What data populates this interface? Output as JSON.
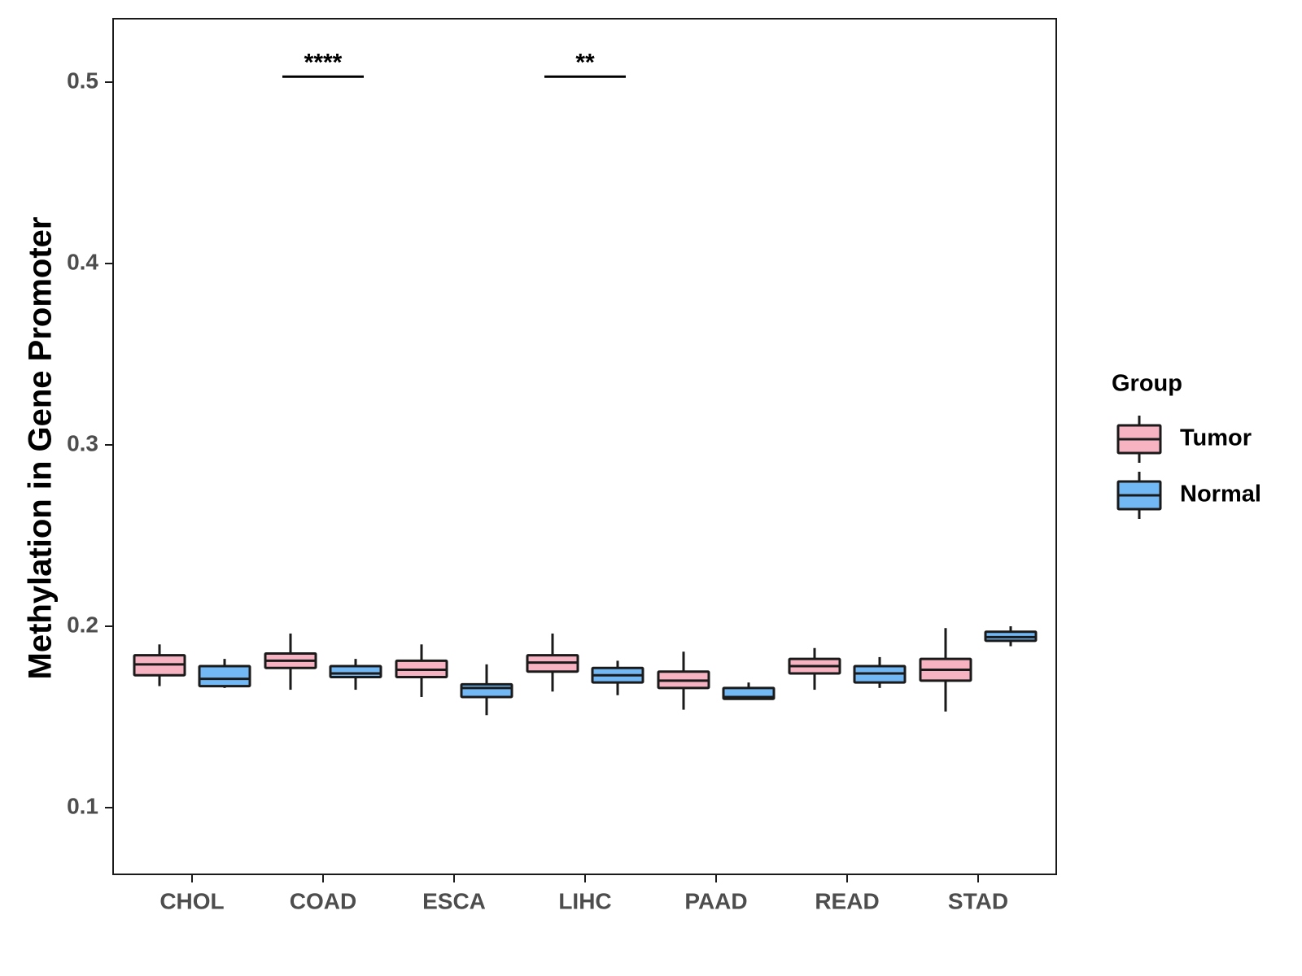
{
  "chart_data": {
    "type": "boxplot",
    "title": "",
    "xlabel": "",
    "ylabel": "Methylation in Gene Promoter",
    "ylim": [
      0.063,
      0.535
    ],
    "yticks": [
      0.1,
      0.2,
      0.3,
      0.4,
      0.5
    ],
    "ytick_labels": [
      "0.1",
      "0.2",
      "0.3",
      "0.4",
      "0.5"
    ],
    "categories": [
      "CHOL",
      "COAD",
      "ESCA",
      "LIHC",
      "PAAD",
      "READ",
      "STAD"
    ],
    "legend": {
      "title": "Group",
      "position": "right",
      "entries": [
        {
          "name": "Tumor",
          "color": "#f7b3c2"
        },
        {
          "name": "Normal",
          "color": "#72b8f5"
        }
      ]
    },
    "series": [
      {
        "name": "Tumor",
        "color": "#f7b3c2",
        "boxes": [
          {
            "category": "CHOL",
            "whisker_low": 0.167,
            "q1": 0.173,
            "median": 0.179,
            "q3": 0.184,
            "whisker_high": 0.19
          },
          {
            "category": "COAD",
            "whisker_low": 0.165,
            "q1": 0.177,
            "median": 0.181,
            "q3": 0.185,
            "whisker_high": 0.196
          },
          {
            "category": "ESCA",
            "whisker_low": 0.161,
            "q1": 0.172,
            "median": 0.176,
            "q3": 0.181,
            "whisker_high": 0.19
          },
          {
            "category": "LIHC",
            "whisker_low": 0.164,
            "q1": 0.175,
            "median": 0.18,
            "q3": 0.184,
            "whisker_high": 0.196
          },
          {
            "category": "PAAD",
            "whisker_low": 0.154,
            "q1": 0.166,
            "median": 0.17,
            "q3": 0.175,
            "whisker_high": 0.186
          },
          {
            "category": "READ",
            "whisker_low": 0.165,
            "q1": 0.174,
            "median": 0.178,
            "q3": 0.182,
            "whisker_high": 0.188
          },
          {
            "category": "STAD",
            "whisker_low": 0.153,
            "q1": 0.17,
            "median": 0.176,
            "q3": 0.182,
            "whisker_high": 0.199
          }
        ]
      },
      {
        "name": "Normal",
        "color": "#72b8f5",
        "boxes": [
          {
            "category": "CHOL",
            "whisker_low": 0.166,
            "q1": 0.167,
            "median": 0.171,
            "q3": 0.178,
            "whisker_high": 0.182
          },
          {
            "category": "COAD",
            "whisker_low": 0.165,
            "q1": 0.172,
            "median": 0.174,
            "q3": 0.178,
            "whisker_high": 0.182
          },
          {
            "category": "ESCA",
            "whisker_low": 0.151,
            "q1": 0.161,
            "median": 0.166,
            "q3": 0.168,
            "whisker_high": 0.179
          },
          {
            "category": "LIHC",
            "whisker_low": 0.162,
            "q1": 0.169,
            "median": 0.173,
            "q3": 0.177,
            "whisker_high": 0.181
          },
          {
            "category": "PAAD",
            "whisker_low": 0.16,
            "q1": 0.16,
            "median": 0.161,
            "q3": 0.166,
            "whisker_high": 0.169
          },
          {
            "category": "READ",
            "whisker_low": 0.166,
            "q1": 0.169,
            "median": 0.174,
            "q3": 0.178,
            "whisker_high": 0.183
          },
          {
            "category": "STAD",
            "whisker_low": 0.189,
            "q1": 0.192,
            "median": 0.194,
            "q3": 0.197,
            "whisker_high": 0.2
          }
        ]
      }
    ],
    "annotations": [
      {
        "category": "COAD",
        "label": "****",
        "y": 0.503
      },
      {
        "category": "LIHC",
        "label": "**",
        "y": 0.503
      }
    ]
  }
}
